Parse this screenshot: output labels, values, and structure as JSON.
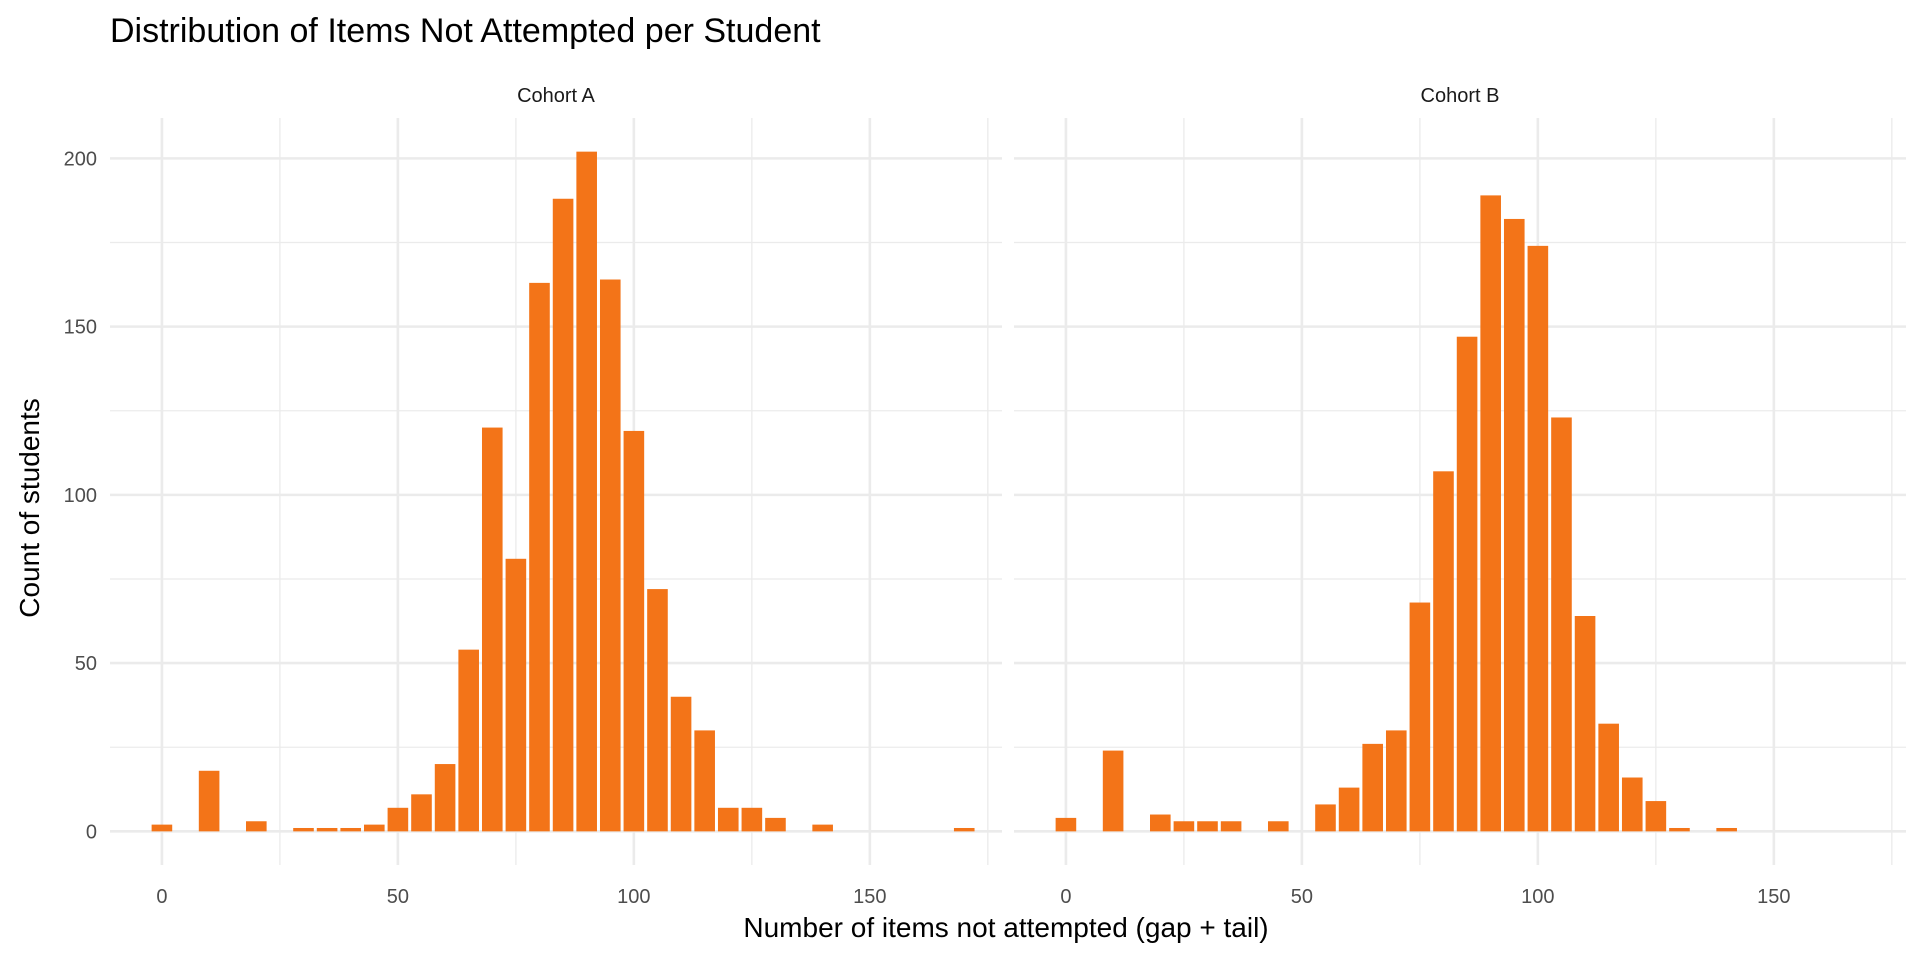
{
  "chart_data": {
    "type": "bar",
    "title": "Distribution of Items Not Attempted per Student",
    "xlabel": "Number of items not attempted (gap + tail)",
    "ylabel": "Count of students",
    "xlim": [
      -11,
      178
    ],
    "ylim": [
      -10,
      212
    ],
    "x_ticks": [
      0,
      50,
      100,
      150
    ],
    "y_ticks": [
      0,
      50,
      100,
      150,
      200
    ],
    "grid": true,
    "bar_color": "#F37418",
    "bin_width": 5,
    "panels": [
      {
        "label": "Cohort A",
        "bins": [
          {
            "x": 0,
            "value": 2
          },
          {
            "x": 10,
            "value": 18
          },
          {
            "x": 20,
            "value": 3
          },
          {
            "x": 30,
            "value": 1
          },
          {
            "x": 35,
            "value": 1
          },
          {
            "x": 40,
            "value": 1
          },
          {
            "x": 45,
            "value": 2
          },
          {
            "x": 50,
            "value": 7
          },
          {
            "x": 55,
            "value": 11
          },
          {
            "x": 60,
            "value": 20
          },
          {
            "x": 65,
            "value": 54
          },
          {
            "x": 70,
            "value": 120
          },
          {
            "x": 75,
            "value": 81
          },
          {
            "x": 80,
            "value": 163
          },
          {
            "x": 85,
            "value": 188
          },
          {
            "x": 90,
            "value": 202
          },
          {
            "x": 95,
            "value": 164
          },
          {
            "x": 100,
            "value": 119
          },
          {
            "x": 105,
            "value": 72
          },
          {
            "x": 110,
            "value": 40
          },
          {
            "x": 115,
            "value": 30
          },
          {
            "x": 120,
            "value": 7
          },
          {
            "x": 125,
            "value": 7
          },
          {
            "x": 130,
            "value": 4
          },
          {
            "x": 140,
            "value": 2
          },
          {
            "x": 170,
            "value": 1
          }
        ]
      },
      {
        "label": "Cohort B",
        "bins": [
          {
            "x": 0,
            "value": 4
          },
          {
            "x": 10,
            "value": 24
          },
          {
            "x": 20,
            "value": 5
          },
          {
            "x": 25,
            "value": 3
          },
          {
            "x": 30,
            "value": 3
          },
          {
            "x": 35,
            "value": 3
          },
          {
            "x": 45,
            "value": 3
          },
          {
            "x": 55,
            "value": 8
          },
          {
            "x": 60,
            "value": 13
          },
          {
            "x": 65,
            "value": 26
          },
          {
            "x": 70,
            "value": 30
          },
          {
            "x": 75,
            "value": 68
          },
          {
            "x": 80,
            "value": 107
          },
          {
            "x": 85,
            "value": 147
          },
          {
            "x": 90,
            "value": 189
          },
          {
            "x": 95,
            "value": 182
          },
          {
            "x": 100,
            "value": 174
          },
          {
            "x": 105,
            "value": 123
          },
          {
            "x": 110,
            "value": 64
          },
          {
            "x": 115,
            "value": 32
          },
          {
            "x": 120,
            "value": 16
          },
          {
            "x": 125,
            "value": 9
          },
          {
            "x": 130,
            "value": 1
          },
          {
            "x": 140,
            "value": 1
          }
        ]
      }
    ]
  }
}
